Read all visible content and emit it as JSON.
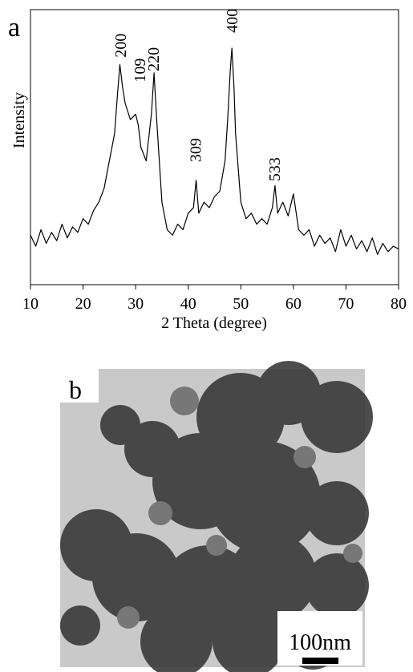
{
  "chart_data": {
    "type": "line",
    "panel_label": "a",
    "x_label": "2 Theta (degree)",
    "y_label": "Intensity",
    "x": [
      10,
      11,
      12,
      13,
      14,
      15,
      16,
      17,
      18,
      19,
      20,
      21,
      22,
      23,
      24,
      25,
      26,
      26.5,
      27,
      27.5,
      28,
      29,
      30,
      30.5,
      31,
      32,
      33,
      33.5,
      34,
      35,
      36,
      37,
      38,
      39,
      40,
      41,
      41.5,
      42,
      43,
      44,
      45,
      46,
      47,
      47.5,
      48,
      48.3,
      48.7,
      49,
      50,
      51,
      52,
      53,
      54,
      55,
      56,
      56.5,
      57,
      58,
      59,
      60,
      61,
      62,
      63,
      64,
      65,
      66,
      67,
      68,
      69,
      70,
      71,
      72,
      73,
      74,
      75,
      76,
      77,
      78,
      79,
      80
    ],
    "values": [
      18,
      14,
      20,
      15,
      19,
      16,
      22,
      17,
      21,
      19,
      24,
      22,
      27,
      30,
      35,
      45,
      55,
      68,
      80,
      72,
      66,
      60,
      62,
      58,
      50,
      45,
      62,
      77,
      60,
      30,
      20,
      18,
      22,
      20,
      26,
      28,
      38,
      26,
      30,
      28,
      32,
      34,
      45,
      60,
      78,
      86,
      72,
      55,
      30,
      24,
      26,
      22,
      24,
      22,
      28,
      36,
      26,
      30,
      25,
      33,
      20,
      18,
      20,
      14,
      18,
      15,
      17,
      12,
      20,
      14,
      18,
      13,
      16,
      12,
      17,
      11,
      15,
      12,
      14,
      13
    ],
    "color": "#000000",
    "xlim": [
      10,
      80
    ],
    "xticks": [
      10,
      20,
      30,
      40,
      50,
      60,
      70,
      80
    ],
    "ylim": [
      0,
      100
    ],
    "annotations": [
      {
        "text": "200",
        "x": 27.2,
        "y": 82
      },
      {
        "text": "109",
        "x": 30.9,
        "y": 73
      },
      {
        "text": "220",
        "x": 33.5,
        "y": 77
      },
      {
        "text": "309",
        "x": 41.5,
        "y": 44
      },
      {
        "text": "400",
        "x": 48.4,
        "y": 91
      },
      {
        "text": "533",
        "x": 56.5,
        "y": 37
      }
    ]
  },
  "image_panel": {
    "label": "b",
    "scale_bar": "100nm"
  }
}
